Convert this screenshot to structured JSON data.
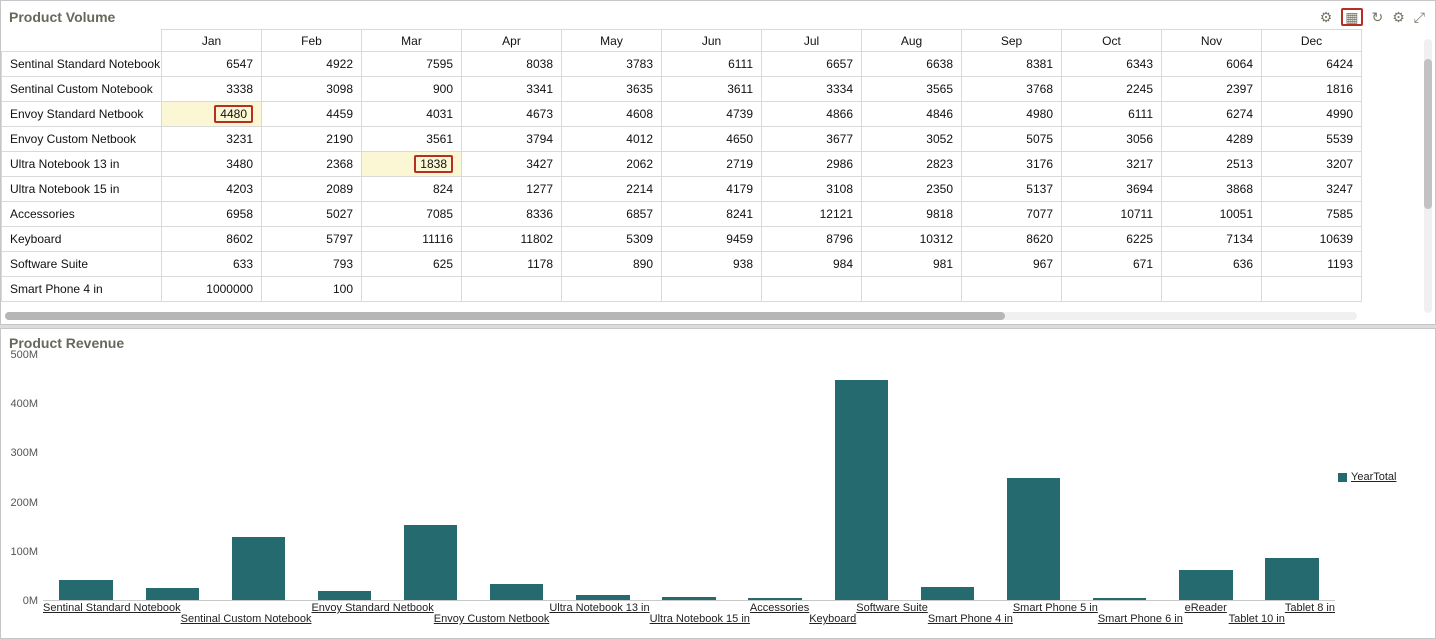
{
  "volume": {
    "title": "Product Volume",
    "toolbar_icons": [
      {
        "name": "settings-gear",
        "glyph": "⚙",
        "highlighted": false
      },
      {
        "name": "grid-view",
        "glyph": "▦",
        "highlighted": true
      },
      {
        "name": "refresh",
        "glyph": "↻",
        "highlighted": false
      },
      {
        "name": "advanced-settings-gear",
        "glyph": "⚙",
        "highlighted": false
      },
      {
        "name": "maximize",
        "glyph": "⤢",
        "highlighted": false
      }
    ],
    "months": [
      "Jan",
      "Feb",
      "Mar",
      "Apr",
      "May",
      "Jun",
      "Jul",
      "Aug",
      "Sep",
      "Oct",
      "Nov",
      "Dec"
    ],
    "rows": [
      {
        "name": "Sentinal Standard Notebook",
        "values": [
          6547,
          4922,
          7595,
          8038,
          3783,
          6111,
          6657,
          6638,
          8381,
          6343,
          6064,
          6424
        ]
      },
      {
        "name": "Sentinal Custom Notebook",
        "values": [
          3338,
          3098,
          900,
          3341,
          3635,
          3611,
          3334,
          3565,
          3768,
          2245,
          2397,
          1816
        ]
      },
      {
        "name": "Envoy Standard Netbook",
        "values": [
          4480,
          4459,
          4031,
          4673,
          4608,
          4739,
          4866,
          4846,
          4980,
          6111,
          6274,
          4990
        ]
      },
      {
        "name": "Envoy Custom Netbook",
        "values": [
          3231,
          2190,
          3561,
          3794,
          4012,
          4650,
          3677,
          3052,
          5075,
          3056,
          4289,
          5539
        ]
      },
      {
        "name": "Ultra Notebook 13 in",
        "values": [
          3480,
          2368,
          1838,
          3427,
          2062,
          2719,
          2986,
          2823,
          3176,
          3217,
          2513,
          3207
        ]
      },
      {
        "name": "Ultra Notebook 15 in",
        "values": [
          4203,
          2089,
          824,
          1277,
          2214,
          4179,
          3108,
          2350,
          5137,
          3694,
          3868,
          3247
        ]
      },
      {
        "name": "Accessories",
        "values": [
          6958,
          5027,
          7085,
          8336,
          6857,
          8241,
          12121,
          9818,
          7077,
          10711,
          10051,
          7585
        ]
      },
      {
        "name": "Keyboard",
        "values": [
          8602,
          5797,
          11116,
          11802,
          5309,
          9459,
          8796,
          10312,
          8620,
          6225,
          7134,
          10639
        ]
      },
      {
        "name": "Software Suite",
        "values": [
          633,
          793,
          625,
          1178,
          890,
          938,
          984,
          981,
          967,
          671,
          636,
          1193
        ]
      },
      {
        "name": "Smart Phone 4 in",
        "values": [
          1000000,
          100,
          "",
          "",
          "",
          "",
          "",
          "",
          "",
          "",
          "",
          ""
        ]
      }
    ],
    "highlights": [
      {
        "row": 2,
        "col": 0,
        "style": "red-box-on-yellow-cell"
      },
      {
        "row": 4,
        "col": 2,
        "style": "red-box-on-yellow-cell"
      }
    ]
  },
  "revenue": {
    "title": "Product Revenue",
    "chart_data": {
      "type": "bar",
      "title": "Product Revenue",
      "categories": [
        "Sentinal Standard Notebook",
        "Sentinal Custom Notebook",
        "Envoy Standard Netbook",
        "Envoy Custom Netbook",
        "Ultra Notebook 13 in",
        "Ultra Notebook 15 in",
        "Accessories",
        "Keyboard",
        "Software Suite",
        "Smart Phone 4 in",
        "Smart Phone 5 in",
        "Smart Phone 6 in",
        "eReader",
        "Tablet 10 in",
        "Tablet 8 in"
      ],
      "values": [
        40,
        25,
        128,
        18,
        153,
        32,
        10,
        7,
        2,
        450,
        26,
        248,
        1,
        62,
        85
      ],
      "unit": "M",
      "series_name": "YearTotal",
      "yticks": [
        "500M",
        "400M",
        "300M",
        "200M",
        "100M",
        "0M"
      ],
      "ylim": [
        0,
        500
      ],
      "grid": false,
      "legend_position": "right",
      "bar_color": "#256a6e"
    }
  },
  "colors": {
    "bar": "#256a6e",
    "highlight_border": "#b53023",
    "highlight_cell_bg": "#fbf7d5",
    "panel_title": "#68685a"
  }
}
